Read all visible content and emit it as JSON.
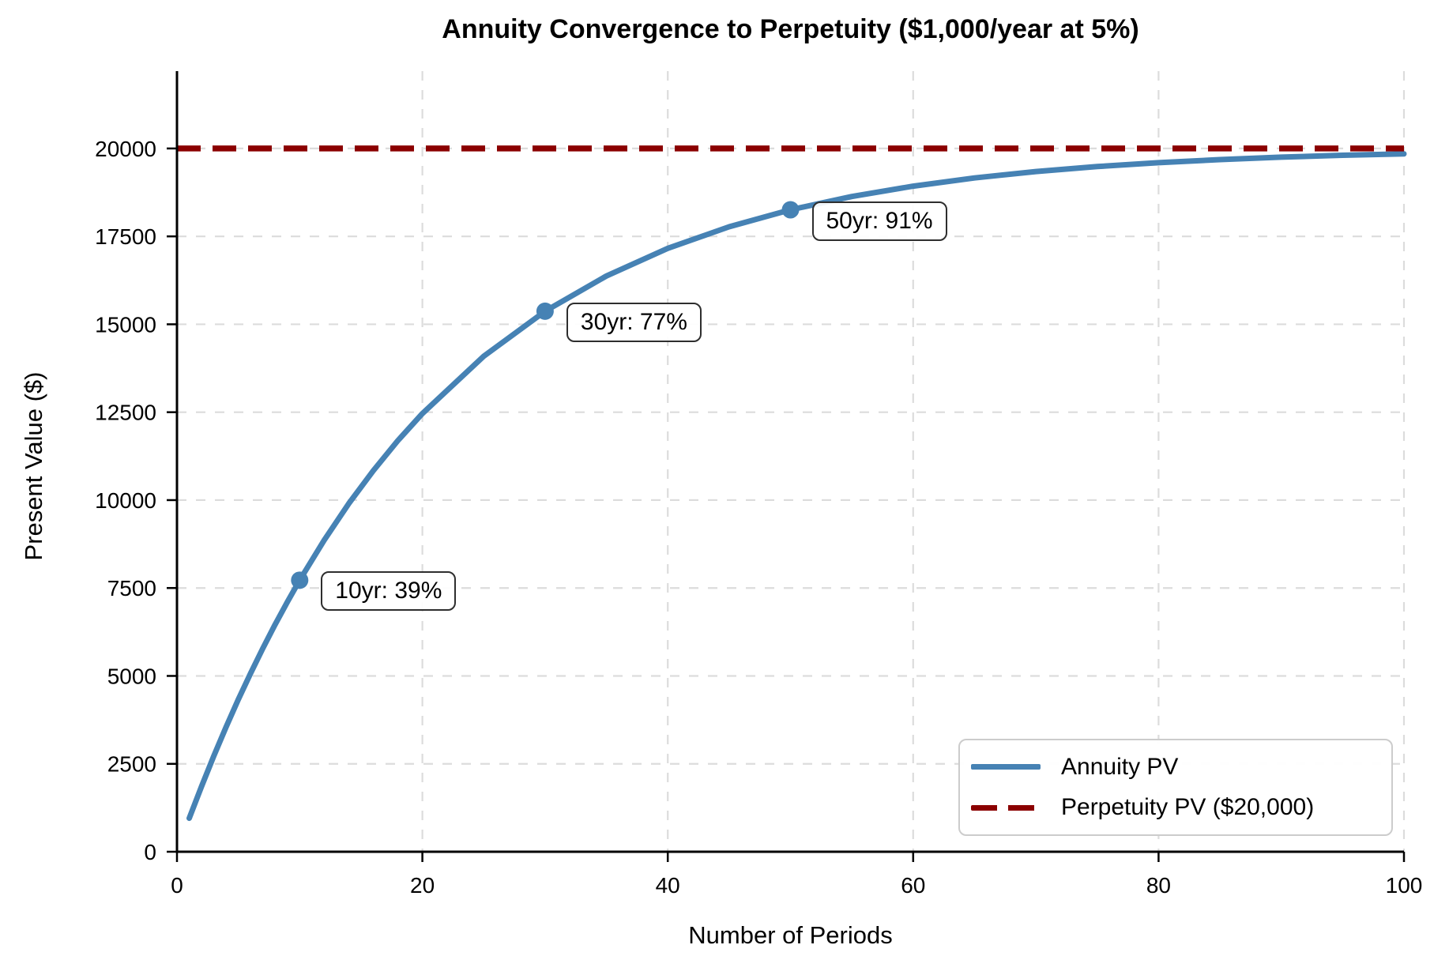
{
  "title": "Annuity Convergence to Perpetuity ($1,000/year at 5%)",
  "chart_data": {
    "type": "line",
    "title": "Annuity Convergence to Perpetuity ($1,000/year at 5%)",
    "xlabel": "Number of Periods",
    "ylabel": "Present Value ($)",
    "xlim": [
      0,
      100
    ],
    "ylim": [
      0,
      22200
    ],
    "x_ticks": [
      0,
      20,
      40,
      60,
      80,
      100
    ],
    "y_ticks": [
      0,
      2500,
      5000,
      7500,
      10000,
      12500,
      15000,
      17500,
      20000
    ],
    "grid": true,
    "grid_color": "#dcdcdc",
    "legend_position": "lower right",
    "series": [
      {
        "name": "Annuity PV",
        "type": "line",
        "style": "solid",
        "color": "#4682B4",
        "x": [
          1,
          2,
          3,
          4,
          5,
          6,
          7,
          8,
          9,
          10,
          12,
          14,
          16,
          18,
          20,
          25,
          30,
          35,
          40,
          45,
          50,
          55,
          60,
          65,
          70,
          75,
          80,
          85,
          90,
          95,
          100
        ],
        "y": [
          952,
          1859,
          2723,
          3546,
          4329,
          5076,
          5786,
          6463,
          7108,
          7722,
          8863,
          9899,
          10838,
          11690,
          12462,
          14094,
          15372,
          16374,
          17159,
          17774,
          18256,
          18633,
          18929,
          19161,
          19343,
          19485,
          19596,
          19684,
          19752,
          19806,
          19848
        ]
      },
      {
        "name": "Perpetuity PV ($20,000)",
        "type": "hline",
        "style": "dashed",
        "color": "#8B0000",
        "y": 20000
      }
    ],
    "annotations": [
      {
        "id": "10yr",
        "x": 10,
        "y": 7722,
        "label": "10yr: 39%"
      },
      {
        "id": "30yr",
        "x": 30,
        "y": 15372,
        "label": "30yr: 77%"
      },
      {
        "id": "50yr",
        "x": 50,
        "y": 18256,
        "label": "50yr: 91%"
      }
    ]
  }
}
